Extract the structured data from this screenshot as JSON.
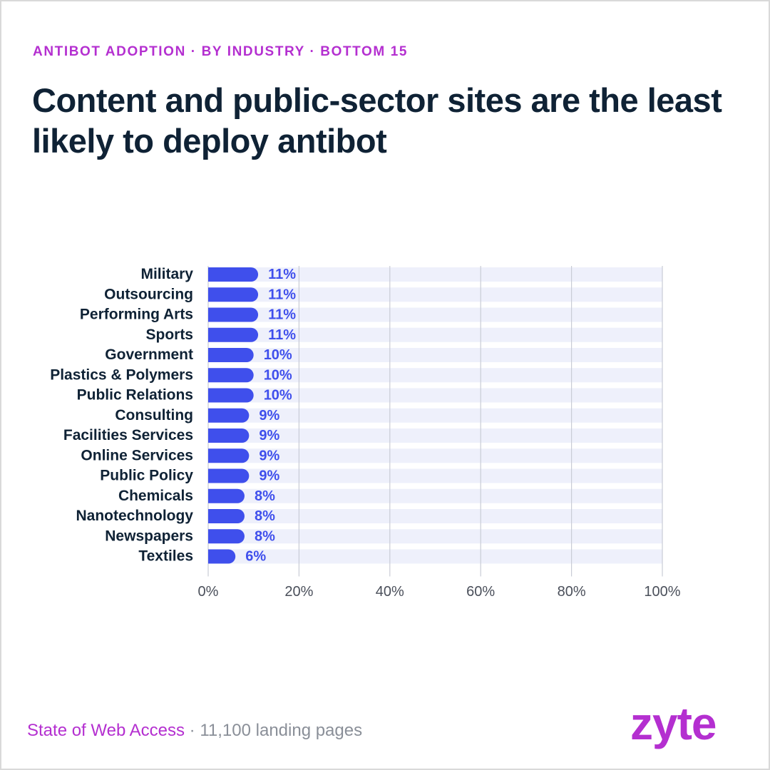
{
  "header": {
    "kicker": "ANTIBOT ADOPTION · BY INDUSTRY · BOTTOM 15",
    "title": "Content and public-sector sites are the least likely to deploy antibot"
  },
  "footer": {
    "source": "State of Web Access",
    "separator": " · ",
    "note": "11,100 landing pages"
  },
  "brand": {
    "logo_text": "zyte"
  },
  "colors": {
    "bar": "#3f4fec",
    "track": "#eef0fb",
    "value_label": "#3f4fec",
    "category_label": "#0f2235",
    "tick_label": "#4a4f5a",
    "gridline": "#c9ccd6",
    "accent": "#b42fd0"
  },
  "chart_data": {
    "type": "bar",
    "orientation": "horizontal",
    "categories": [
      "Military",
      "Outsourcing",
      "Performing Arts",
      "Sports",
      "Government",
      "Plastics & Polymers",
      "Public Relations",
      "Consulting",
      "Facilities Services",
      "Online Services",
      "Public Policy",
      "Chemicals",
      "Nanotechnology",
      "Newspapers",
      "Textiles"
    ],
    "values": [
      11,
      11,
      11,
      11,
      10,
      10,
      10,
      9,
      9,
      9,
      9,
      8,
      8,
      8,
      6
    ],
    "value_labels": [
      "11%",
      "11%",
      "11%",
      "11%",
      "10%",
      "10%",
      "10%",
      "9%",
      "9%",
      "9%",
      "9%",
      "8%",
      "8%",
      "8%",
      "6%"
    ],
    "xlim": [
      0,
      100
    ],
    "xticks": [
      0,
      20,
      40,
      60,
      80,
      100
    ],
    "xtick_labels": [
      "0%",
      "20%",
      "40%",
      "60%",
      "80%",
      "100%"
    ],
    "title": "",
    "xlabel": "",
    "ylabel": "",
    "grid": true,
    "legend": "none"
  }
}
